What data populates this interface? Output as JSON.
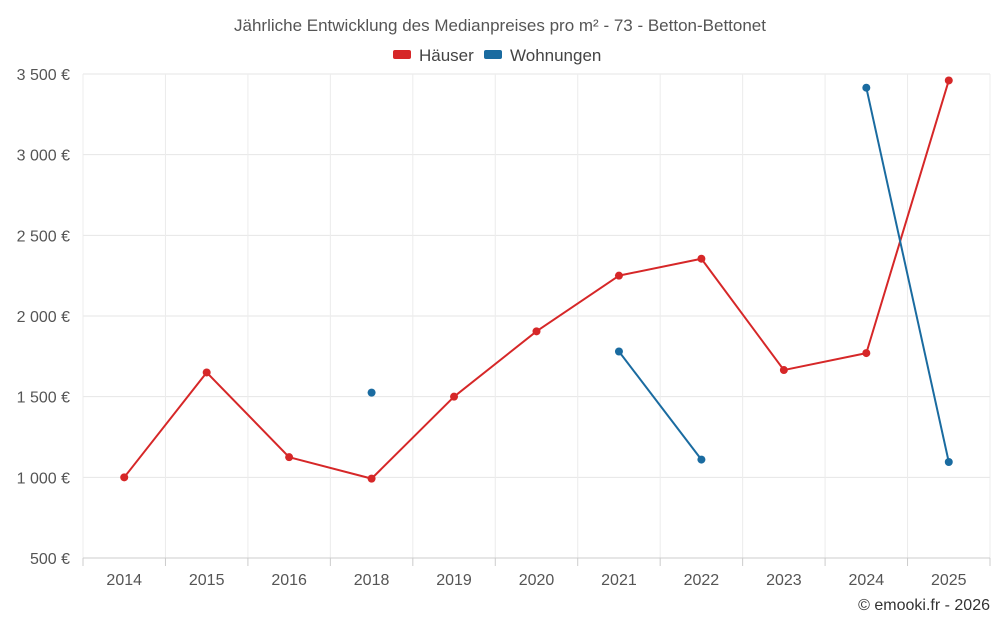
{
  "chart_data": {
    "type": "line",
    "title": "Jährliche Entwicklung des Medianpreises pro m² - 73 - Betton-Bettonet",
    "categories": [
      "2014",
      "2015",
      "2016",
      "2018",
      "2019",
      "2020",
      "2021",
      "2022",
      "2023",
      "2024",
      "2025"
    ],
    "series": [
      {
        "name": "Häuser",
        "color": "#d62728",
        "values": [
          1000,
          1650,
          1125,
          992,
          1500,
          1905,
          2250,
          2355,
          1665,
          1770,
          3460
        ]
      },
      {
        "name": "Wohnungen",
        "color": "#1a6ba0",
        "values": [
          null,
          null,
          null,
          1525,
          null,
          null,
          1780,
          1110,
          null,
          3415,
          1095
        ]
      }
    ],
    "y_ticks": [
      "500 €",
      "1 000 €",
      "1 500 €",
      "2 000 €",
      "2 500 €",
      "3 000 €",
      "3 500 €"
    ],
    "ylim": [
      500,
      3500
    ],
    "xlabel": "",
    "ylabel": "",
    "legend_position": "top-center",
    "grid": true
  },
  "credit": "© emooki.fr - 2026"
}
